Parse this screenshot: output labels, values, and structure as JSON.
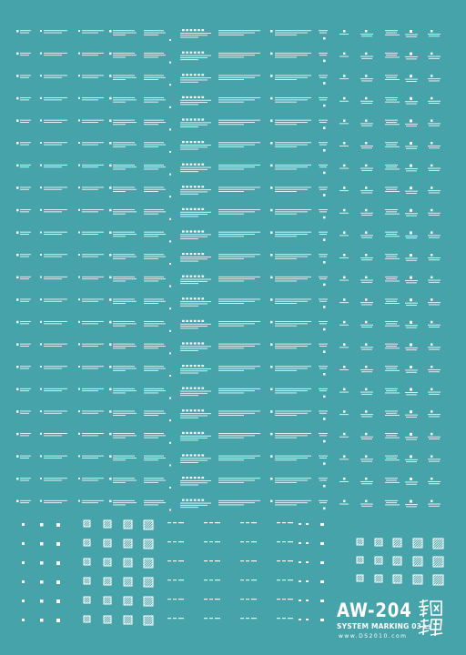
{
  "sheet": {
    "background_color": "#47a3aa",
    "ink_color": "#ffffff",
    "title": "AW-204",
    "subtitle": "SYSTEM MARKING 03",
    "subtitle_suffix": "LS",
    "url": "www.DS2010.com",
    "seal_glyphs": "鋼魂"
  }
}
